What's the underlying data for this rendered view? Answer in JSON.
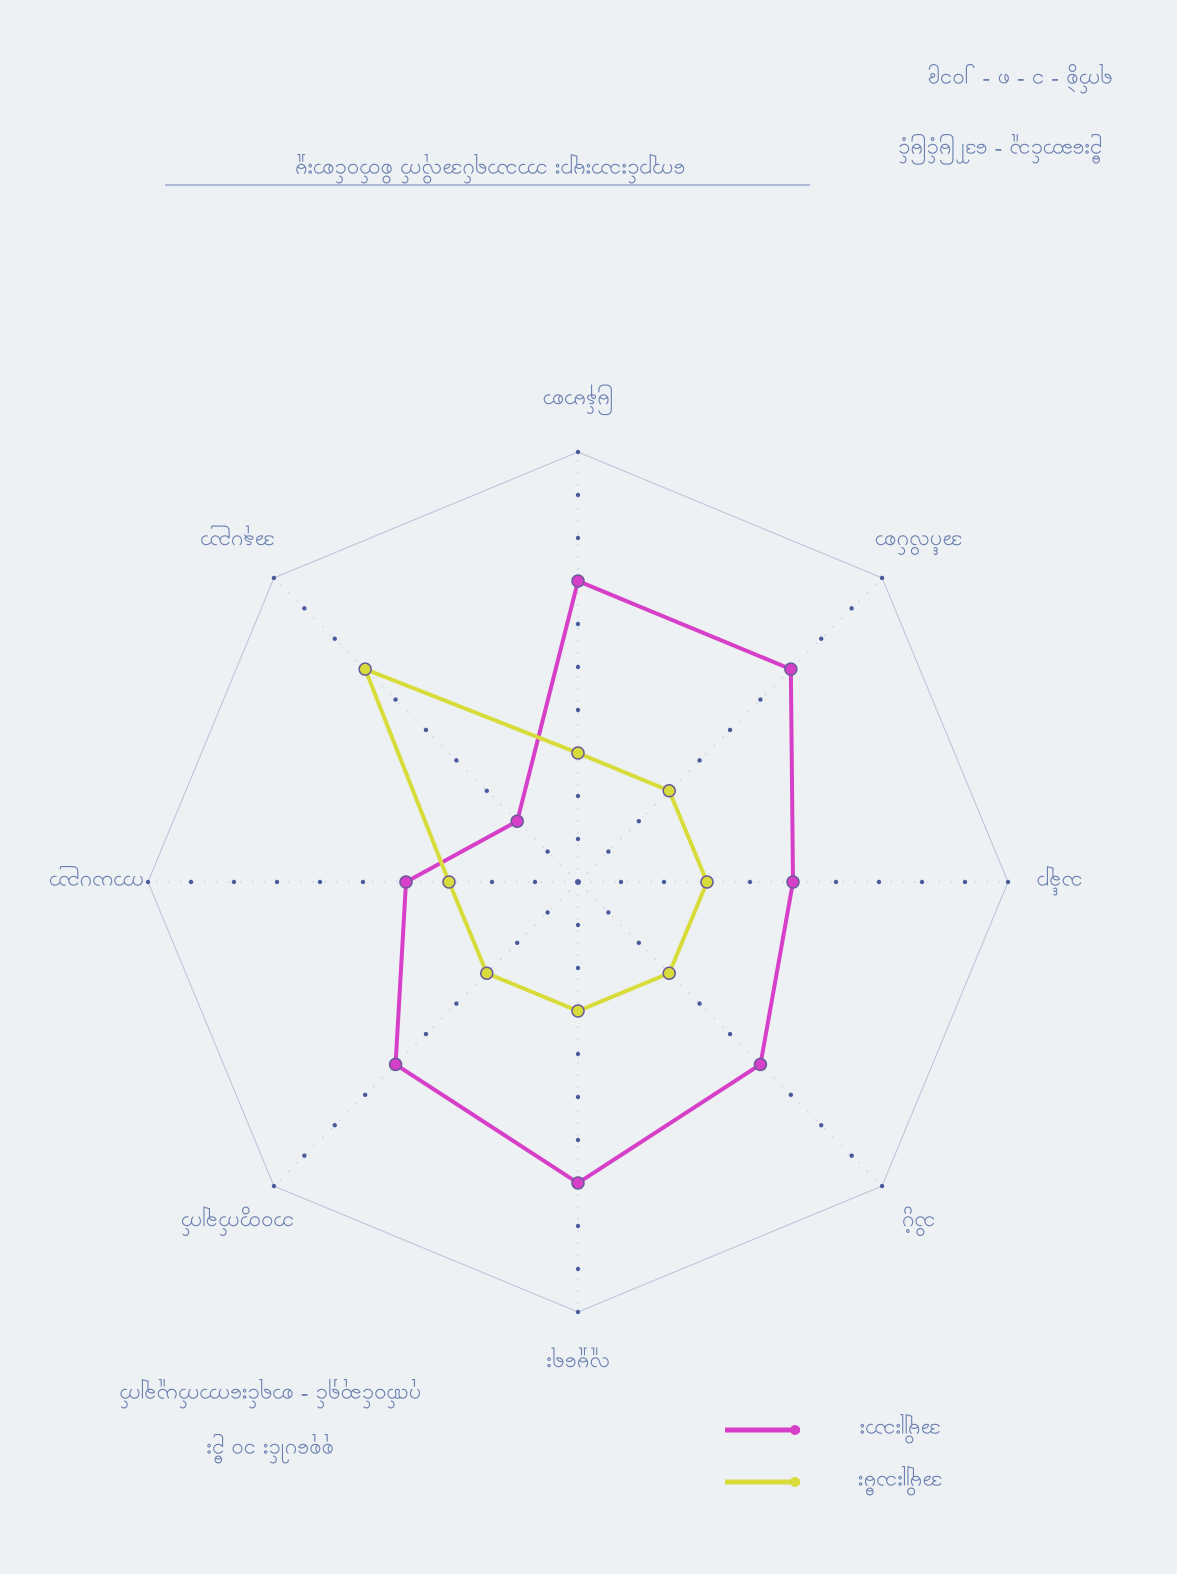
{
  "chart_data": {
    "type": "radar",
    "title": "ကျောင်းသားများ ဘာသာရပ်အလိုက် စိတ်ဝင်စားမှု",
    "notes": [
      "ရက်စွဲ - ၁ - ၈ - ၂၀၁၉",
      "ဦးဆောင်သူ - ဒေါ်မြင့်မြင့်"
    ],
    "footnotes": [
      "ဂုဏ်ဝင်ဆုရှင် - စာရင်းကောက်ယူချက်",
      "စုစုပေါင်း ၁၀ ဦး"
    ],
    "categories": [
      "မြန်မာစာ",
      "အင်္ဂလိပ်စာ",
      "သင်္ချာ",
      "သိပ္ပံ",
      "လူမှုရေး",
      "ဘဝတွက်ချက်",
      "ကာယပညာ",
      "အနုပညာ"
    ],
    "series": [
      {
        "name": "အမျိုးသား",
        "color": "#d63fc8",
        "values": [
          7,
          7,
          5,
          6,
          7,
          6,
          4,
          2
        ]
      },
      {
        "name": "အမျိုးသမီး",
        "color": "#d8dc3a",
        "values": [
          3,
          3,
          3,
          3,
          3,
          3,
          3,
          7
        ]
      }
    ],
    "rlim": [
      0,
      10
    ],
    "rticks": [
      1,
      2,
      3,
      4,
      5,
      6,
      7,
      8,
      9,
      10
    ]
  }
}
